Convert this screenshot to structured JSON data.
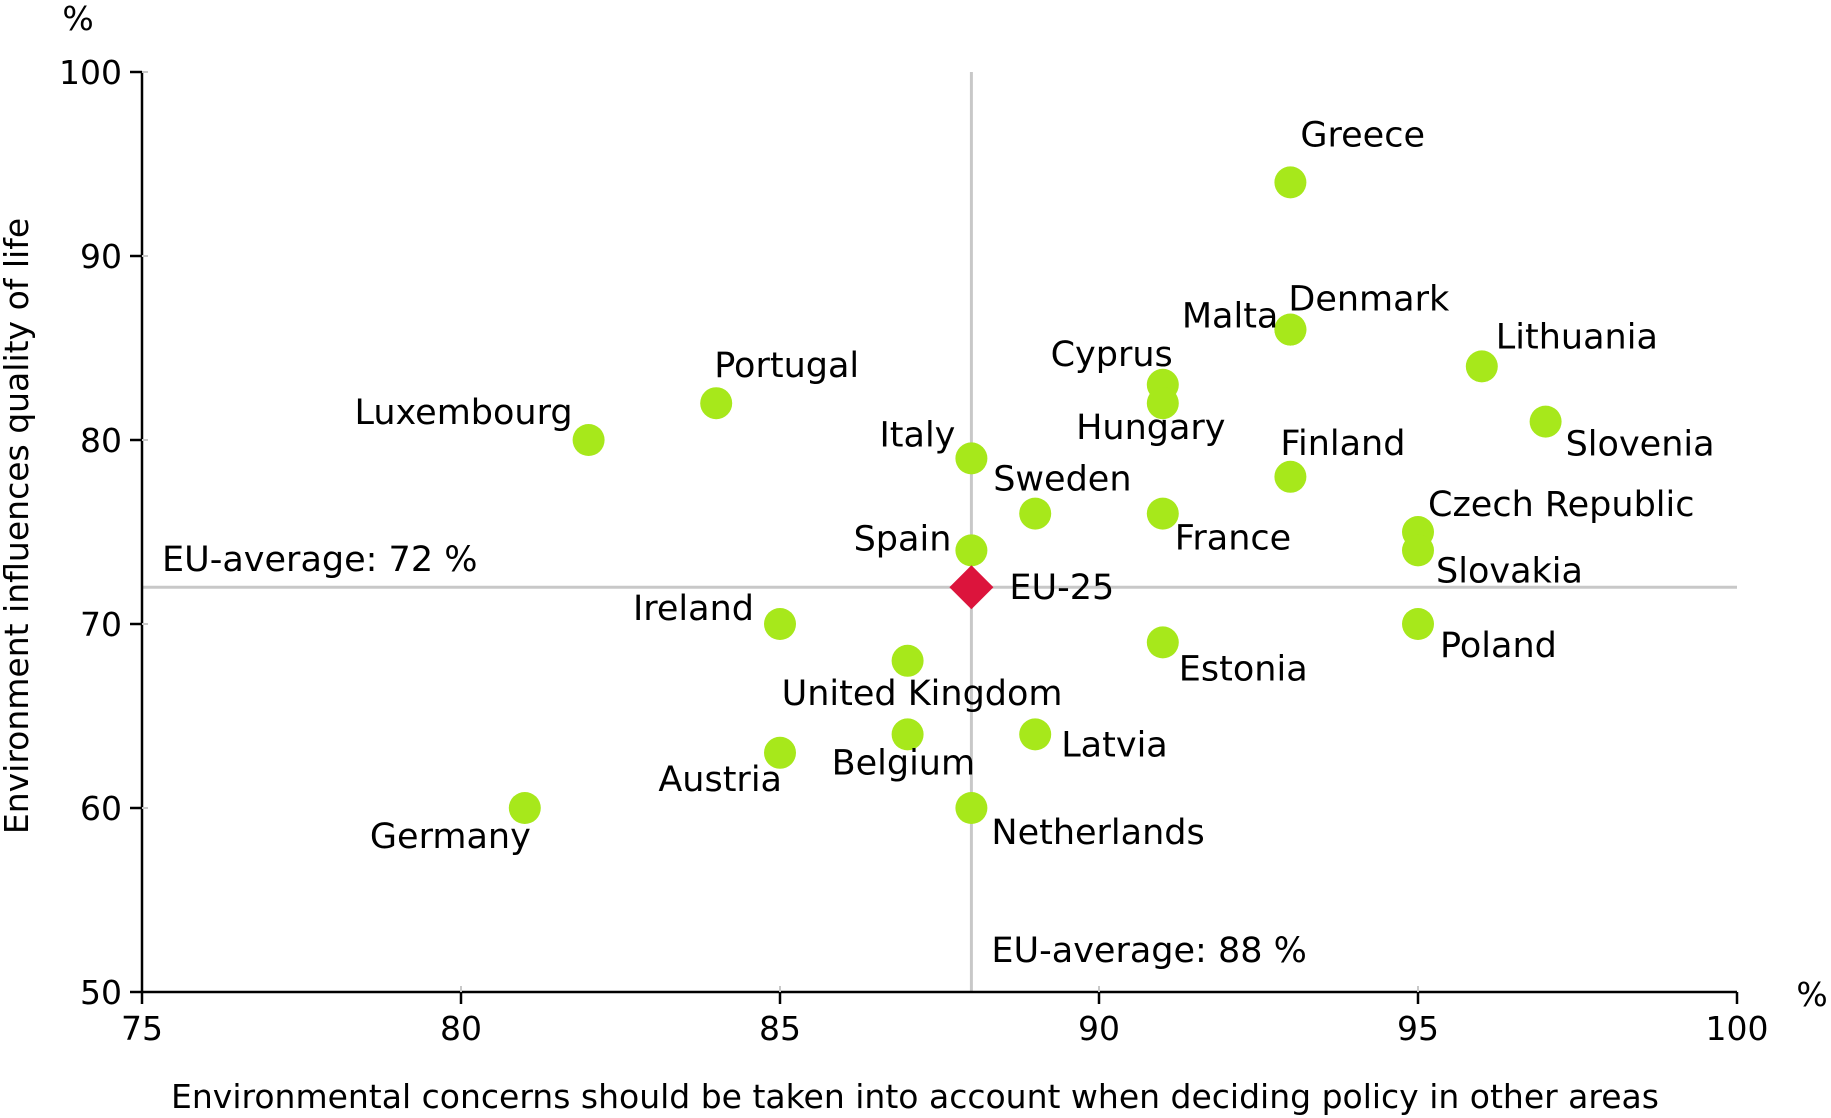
{
  "chart_data": {
    "type": "scatter",
    "title": "",
    "xlabel": "Environmental concerns should be taken into account when deciding policy in other areas",
    "ylabel": "Environment influences quality of life",
    "x_unit": "%",
    "y_unit": "%",
    "xlim": [
      75,
      100
    ],
    "ylim": [
      50,
      100
    ],
    "x_ticks": [
      75,
      80,
      85,
      90,
      95,
      100
    ],
    "y_ticks": [
      50,
      60,
      70,
      80,
      90,
      100
    ],
    "grid": false,
    "point_color": "#a7e81b",
    "highlight_color": "#dc143c",
    "reference_lines": {
      "x": 88,
      "y": 72,
      "x_label": "EU-average: 88 %",
      "y_label": "EU-average: 72 %",
      "color": "#c8c8c8"
    },
    "points": [
      {
        "label": "Greece",
        "x": 93,
        "y": 94
      },
      {
        "label": "Denmark",
        "x": 93,
        "y": 86
      },
      {
        "label": "Malta",
        "x": 93,
        "y": 86
      },
      {
        "label": "Lithuania",
        "x": 96,
        "y": 84
      },
      {
        "label": "Cyprus",
        "x": 91,
        "y": 83
      },
      {
        "label": "Hungary",
        "x": 91,
        "y": 82
      },
      {
        "label": "Portugal",
        "x": 84,
        "y": 82
      },
      {
        "label": "Slovenia",
        "x": 97,
        "y": 81
      },
      {
        "label": "Luxembourg",
        "x": 82,
        "y": 80
      },
      {
        "label": "Italy",
        "x": 88,
        "y": 79
      },
      {
        "label": "Finland",
        "x": 93,
        "y": 78
      },
      {
        "label": "Sweden",
        "x": 89,
        "y": 76
      },
      {
        "label": "France",
        "x": 91,
        "y": 76
      },
      {
        "label": "Czech Republic",
        "x": 95,
        "y": 75
      },
      {
        "label": "Spain",
        "x": 88,
        "y": 74
      },
      {
        "label": "Slovakia",
        "x": 95,
        "y": 74
      },
      {
        "label": "Ireland",
        "x": 85,
        "y": 70
      },
      {
        "label": "Poland",
        "x": 95,
        "y": 70
      },
      {
        "label": "Estonia",
        "x": 91,
        "y": 69
      },
      {
        "label": "United Kingdom",
        "x": 87,
        "y": 68
      },
      {
        "label": "Belgium",
        "x": 87,
        "y": 64
      },
      {
        "label": "Latvia",
        "x": 89,
        "y": 64
      },
      {
        "label": "Austria",
        "x": 85,
        "y": 63
      },
      {
        "label": "Germany",
        "x": 81,
        "y": 60
      },
      {
        "label": "Netherlands",
        "x": 88,
        "y": 60
      }
    ],
    "highlight": {
      "label": "EU-25",
      "x": 88,
      "y": 72
    }
  }
}
